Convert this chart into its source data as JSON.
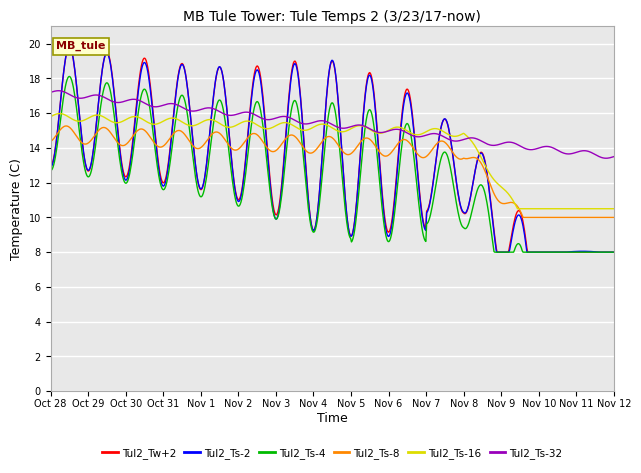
{
  "title": "MB Tule Tower: Tule Temps 2 (3/23/17-now)",
  "xlabel": "Time",
  "ylabel": "Temperature (C)",
  "ylim": [
    0,
    21
  ],
  "yticks": [
    0,
    2,
    4,
    6,
    8,
    10,
    12,
    14,
    16,
    18,
    20
  ],
  "plot_bg_color": "#e8e8e8",
  "fig_bg_color": "#ffffff",
  "grid_color": "#ffffff",
  "annotation_text": "MB_tule",
  "annotation_color": "#8b0000",
  "annotation_bg": "#ffffcc",
  "annotation_edge": "#999900",
  "series": [
    {
      "label": "Tul2_Tw+2",
      "color": "#ff0000"
    },
    {
      "label": "Tul2_Ts-2",
      "color": "#0000ff"
    },
    {
      "label": "Tul2_Ts-4",
      "color": "#00bb00"
    },
    {
      "label": "Tul2_Ts-8",
      "color": "#ff8800"
    },
    {
      "label": "Tul2_Ts-16",
      "color": "#dddd00"
    },
    {
      "label": "Tul2_Ts-32",
      "color": "#9900bb"
    }
  ],
  "xtick_labels": [
    "Oct 28",
    "Oct 29",
    "Oct 30",
    "Oct 31",
    "Nov 1",
    "Nov 2",
    "Nov 3",
    "Nov 4",
    "Nov 5",
    "Nov 6",
    "Nov 7",
    "Nov 8",
    "Nov 9",
    "Nov 10",
    "Nov 11",
    "Nov 12"
  ],
  "xlim": [
    0,
    15
  ],
  "num_days": 15,
  "title_fontsize": 10,
  "axis_fontsize": 9,
  "tick_fontsize": 7
}
